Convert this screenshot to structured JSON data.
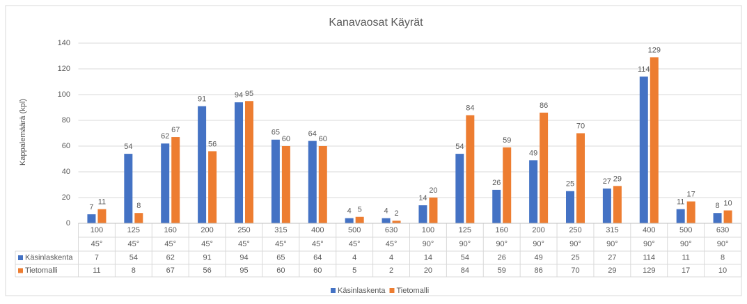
{
  "chart_data": {
    "type": "bar",
    "title": "Kanavaosat Käyrät",
    "ylabel": "Kappalemäärä (kpl)",
    "categories": [
      "100",
      "125",
      "160",
      "200",
      "250",
      "315",
      "400",
      "500",
      "630",
      "100",
      "125",
      "160",
      "200",
      "250",
      "315",
      "400",
      "500",
      "630"
    ],
    "subcategories": [
      "45°",
      "45°",
      "45°",
      "45°",
      "45°",
      "45°",
      "45°",
      "45°",
      "45°",
      "90°",
      "90°",
      "90°",
      "90°",
      "90°",
      "90°",
      "90°",
      "90°",
      "90°"
    ],
    "series": [
      {
        "name": "Käsinlaskenta",
        "color": "#4472c4",
        "values": [
          7,
          54,
          62,
          91,
          94,
          65,
          64,
          4,
          4,
          14,
          54,
          26,
          49,
          25,
          27,
          114,
          11,
          8
        ]
      },
      {
        "name": "Tietomalli",
        "color": "#ed7d31",
        "values": [
          11,
          8,
          67,
          56,
          95,
          60,
          60,
          5,
          2,
          20,
          84,
          59,
          86,
          70,
          29,
          129,
          17,
          10
        ]
      }
    ],
    "ylim": [
      0,
      140
    ],
    "yticks": [
      0,
      20,
      40,
      60,
      80,
      100,
      120,
      140
    ],
    "grid": true,
    "legend": "bottom"
  }
}
